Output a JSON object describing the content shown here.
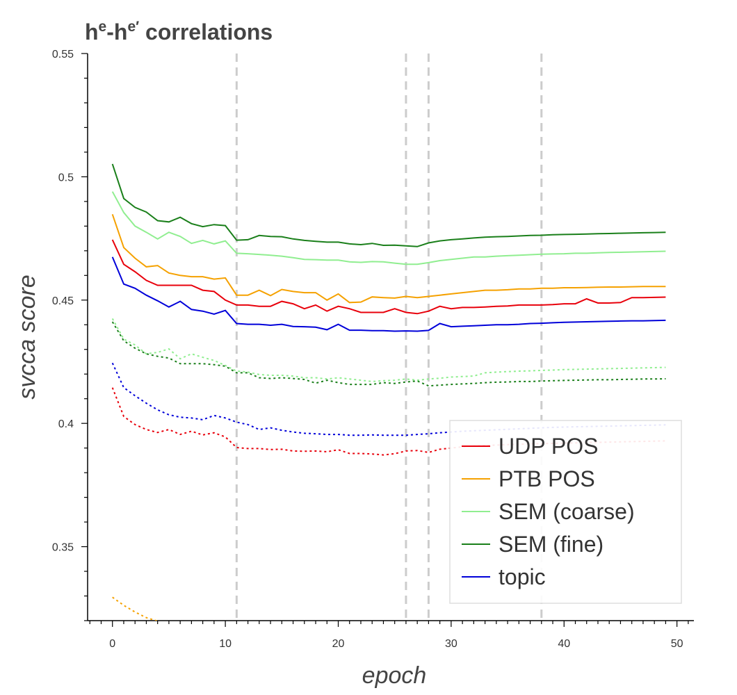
{
  "chart_data": {
    "type": "line",
    "title": {
      "base": "h",
      "sup": "e",
      "dash": "-h",
      "sup2": "e′",
      "rest": " correlations"
    },
    "xlabel": "epoch",
    "ylabel": "svcca score",
    "xlim": [
      -2.2,
      51.5
    ],
    "ylim": [
      0.32,
      0.55
    ],
    "x_ticks": [
      0,
      10,
      20,
      30,
      40,
      50
    ],
    "y_ticks": [
      0.35,
      0.4,
      0.45,
      0.5,
      0.55
    ],
    "y_tick_labels": [
      "0.35",
      "0.4",
      "0.45",
      "0.5",
      "0.55"
    ],
    "grid": false,
    "vlines": [
      11,
      26,
      28,
      38
    ],
    "legend_position": "lower-right",
    "series": [
      {
        "name": "UDP POS",
        "color": "#e8000b",
        "style": "solid",
        "x": [
          0,
          1,
          2,
          3,
          4,
          5,
          6,
          7,
          8,
          9,
          10,
          11,
          12,
          13,
          14,
          15,
          16,
          17,
          18,
          19,
          20,
          21,
          22,
          23,
          24,
          25,
          26,
          27,
          28,
          29,
          30,
          31,
          32,
          33,
          34,
          35,
          36,
          37,
          38,
          39,
          40,
          41,
          42,
          43,
          44,
          45,
          46,
          47,
          48,
          49
        ],
        "y": [
          0.4745,
          0.4645,
          0.4615,
          0.458,
          0.456,
          0.456,
          0.456,
          0.456,
          0.454,
          0.4535,
          0.45,
          0.448,
          0.448,
          0.4475,
          0.4475,
          0.4495,
          0.4485,
          0.4465,
          0.448,
          0.4455,
          0.4475,
          0.4465,
          0.445,
          0.445,
          0.445,
          0.4465,
          0.445,
          0.4445,
          0.4455,
          0.4475,
          0.4465,
          0.447,
          0.447,
          0.4472,
          0.4475,
          0.4476,
          0.448,
          0.448,
          0.448,
          0.4482,
          0.4485,
          0.4485,
          0.4505,
          0.4488,
          0.4488,
          0.449,
          0.451,
          0.451,
          0.4511,
          0.4512
        ]
      },
      {
        "name": "PTB POS",
        "color": "#f5a100",
        "style": "solid",
        "x": [
          0,
          1,
          2,
          3,
          4,
          5,
          6,
          7,
          8,
          9,
          10,
          11,
          12,
          13,
          14,
          15,
          16,
          17,
          18,
          19,
          20,
          21,
          22,
          23,
          24,
          25,
          26,
          27,
          28,
          29,
          30,
          31,
          32,
          33,
          34,
          35,
          36,
          37,
          38,
          39,
          40,
          41,
          42,
          43,
          44,
          45,
          46,
          47,
          48,
          49
        ],
        "y": [
          0.4848,
          0.4713,
          0.467,
          0.4635,
          0.464,
          0.461,
          0.46,
          0.4595,
          0.4595,
          0.4585,
          0.459,
          0.452,
          0.452,
          0.454,
          0.4518,
          0.4543,
          0.4535,
          0.453,
          0.453,
          0.45,
          0.4525,
          0.449,
          0.4492,
          0.4513,
          0.451,
          0.4508,
          0.4515,
          0.451,
          0.4515,
          0.452,
          0.4525,
          0.453,
          0.4535,
          0.454,
          0.454,
          0.4542,
          0.4545,
          0.4545,
          0.4548,
          0.4548,
          0.455,
          0.455,
          0.4551,
          0.4552,
          0.4553,
          0.4553,
          0.4554,
          0.4555,
          0.4555,
          0.4555
        ]
      },
      {
        "name": "SEM (coarse)",
        "color": "#90ee90",
        "style": "solid",
        "x": [
          0,
          1,
          2,
          3,
          4,
          5,
          6,
          7,
          8,
          9,
          10,
          11,
          12,
          13,
          14,
          15,
          16,
          17,
          18,
          19,
          20,
          21,
          22,
          23,
          24,
          25,
          26,
          27,
          28,
          29,
          30,
          31,
          32,
          33,
          34,
          35,
          36,
          37,
          38,
          39,
          40,
          41,
          42,
          43,
          44,
          45,
          46,
          47,
          48,
          49
        ],
        "y": [
          0.494,
          0.4855,
          0.48,
          0.4775,
          0.4748,
          0.4775,
          0.4758,
          0.473,
          0.4742,
          0.4728,
          0.474,
          0.469,
          0.4688,
          0.4685,
          0.4682,
          0.4678,
          0.4672,
          0.4665,
          0.4664,
          0.4662,
          0.4662,
          0.4655,
          0.4653,
          0.4656,
          0.4655,
          0.465,
          0.4645,
          0.4645,
          0.4652,
          0.466,
          0.4665,
          0.467,
          0.4675,
          0.4675,
          0.4678,
          0.468,
          0.4682,
          0.4684,
          0.4686,
          0.4687,
          0.4688,
          0.469,
          0.469,
          0.4692,
          0.4693,
          0.4694,
          0.4695,
          0.4696,
          0.4697,
          0.4698
        ]
      },
      {
        "name": "SEM (fine)",
        "color": "#1a7f1a",
        "style": "solid",
        "x": [
          0,
          1,
          2,
          3,
          4,
          5,
          6,
          7,
          8,
          9,
          10,
          11,
          12,
          13,
          14,
          15,
          16,
          17,
          18,
          19,
          20,
          21,
          22,
          23,
          24,
          25,
          26,
          27,
          28,
          29,
          30,
          31,
          32,
          33,
          34,
          35,
          36,
          37,
          38,
          39,
          40,
          41,
          42,
          43,
          44,
          45,
          46,
          47,
          48,
          49
        ],
        "y": [
          0.5052,
          0.4912,
          0.4876,
          0.4857,
          0.4822,
          0.4817,
          0.4836,
          0.481,
          0.4798,
          0.4806,
          0.4802,
          0.4743,
          0.4745,
          0.4762,
          0.4758,
          0.4757,
          0.4748,
          0.4742,
          0.4738,
          0.4735,
          0.4735,
          0.4728,
          0.4725,
          0.473,
          0.4722,
          0.4723,
          0.472,
          0.4717,
          0.4732,
          0.474,
          0.4745,
          0.4748,
          0.4752,
          0.4755,
          0.4757,
          0.4758,
          0.476,
          0.4762,
          0.4763,
          0.4765,
          0.4766,
          0.4767,
          0.4768,
          0.4769,
          0.477,
          0.4771,
          0.4772,
          0.4773,
          0.4774,
          0.4775
        ]
      },
      {
        "name": "topic",
        "color": "#0000d9",
        "style": "solid",
        "x": [
          0,
          1,
          2,
          3,
          4,
          5,
          6,
          7,
          8,
          9,
          10,
          11,
          12,
          13,
          14,
          15,
          16,
          17,
          18,
          19,
          20,
          21,
          22,
          23,
          24,
          25,
          26,
          27,
          28,
          29,
          30,
          31,
          32,
          33,
          34,
          35,
          36,
          37,
          38,
          39,
          40,
          41,
          42,
          43,
          44,
          45,
          46,
          47,
          48,
          49
        ],
        "y": [
          0.4675,
          0.4565,
          0.4548,
          0.452,
          0.4497,
          0.4472,
          0.4495,
          0.4462,
          0.4455,
          0.4443,
          0.4458,
          0.4405,
          0.4402,
          0.4402,
          0.4398,
          0.4402,
          0.4393,
          0.4392,
          0.439,
          0.438,
          0.4402,
          0.4378,
          0.4378,
          0.4376,
          0.4376,
          0.4374,
          0.4375,
          0.4374,
          0.4377,
          0.4405,
          0.4392,
          0.4394,
          0.4396,
          0.4398,
          0.44,
          0.44,
          0.4402,
          0.4405,
          0.4406,
          0.4408,
          0.441,
          0.4411,
          0.4412,
          0.4413,
          0.4414,
          0.4415,
          0.4416,
          0.4416,
          0.4417,
          0.4418
        ]
      },
      {
        "name": "",
        "color": "#e8000b",
        "style": "dotted",
        "x": [
          0,
          1,
          2,
          3,
          4,
          5,
          6,
          7,
          8,
          9,
          10,
          11,
          12,
          13,
          14,
          15,
          16,
          17,
          18,
          19,
          20,
          21,
          22,
          23,
          24,
          25,
          26,
          27,
          28,
          29,
          30,
          31,
          32,
          33,
          34,
          35,
          36,
          37,
          38,
          39,
          40,
          41,
          42,
          43,
          44,
          45,
          46,
          47,
          48,
          49
        ],
        "y": [
          0.4145,
          0.4028,
          0.3995,
          0.3975,
          0.3963,
          0.3975,
          0.3955,
          0.3968,
          0.3953,
          0.3962,
          0.3945,
          0.3902,
          0.3898,
          0.3898,
          0.3894,
          0.3895,
          0.3888,
          0.3887,
          0.3888,
          0.3885,
          0.3893,
          0.3878,
          0.3878,
          0.3876,
          0.3872,
          0.3877,
          0.3888,
          0.389,
          0.3882,
          0.3895,
          0.39,
          0.3905,
          0.3908,
          0.391,
          0.3912,
          0.3914,
          0.3915,
          0.3917,
          0.3918,
          0.3919,
          0.392,
          0.3921,
          0.3922,
          0.3923,
          0.3924,
          0.3925,
          0.3926,
          0.3927,
          0.3928,
          0.3929
        ]
      },
      {
        "name": "",
        "color": "#f5a100",
        "style": "dotted",
        "x": [
          0,
          1,
          2,
          3,
          4
        ],
        "y": [
          0.3295,
          0.3262,
          0.3235,
          0.3212,
          0.3198
        ]
      },
      {
        "name": "",
        "color": "#90ee90",
        "style": "dotted",
        "x": [
          0,
          1,
          2,
          3,
          4,
          5,
          6,
          7,
          8,
          9,
          10,
          11,
          12,
          13,
          14,
          15,
          16,
          17,
          18,
          19,
          20,
          21,
          22,
          23,
          24,
          25,
          26,
          27,
          28,
          29,
          30,
          31,
          32,
          33,
          34,
          35,
          36,
          37,
          38,
          39,
          40,
          41,
          42,
          43,
          44,
          45,
          46,
          47,
          48,
          49
        ],
        "y": [
          0.4425,
          0.4342,
          0.4318,
          0.4282,
          0.4288,
          0.4302,
          0.4262,
          0.4282,
          0.4268,
          0.4255,
          0.4235,
          0.4212,
          0.4208,
          0.4198,
          0.4195,
          0.4195,
          0.4192,
          0.4185,
          0.4185,
          0.418,
          0.4185,
          0.418,
          0.4175,
          0.417,
          0.4173,
          0.4175,
          0.418,
          0.4175,
          0.418,
          0.4183,
          0.4188,
          0.419,
          0.4192,
          0.4205,
          0.4208,
          0.421,
          0.4212,
          0.4213,
          0.4215,
          0.4216,
          0.4218,
          0.4219,
          0.422,
          0.4221,
          0.4222,
          0.4223,
          0.4224,
          0.4225,
          0.4226,
          0.4227
        ]
      },
      {
        "name": "",
        "color": "#1a7f1a",
        "style": "dotted",
        "x": [
          0,
          1,
          2,
          3,
          4,
          5,
          6,
          7,
          8,
          9,
          10,
          11,
          12,
          13,
          14,
          15,
          16,
          17,
          18,
          19,
          20,
          21,
          22,
          23,
          24,
          25,
          26,
          27,
          28,
          29,
          30,
          31,
          32,
          33,
          34,
          35,
          36,
          37,
          38,
          39,
          40,
          41,
          42,
          43,
          44,
          45,
          46,
          47,
          48,
          49
        ],
        "y": [
          0.4412,
          0.4335,
          0.4305,
          0.4282,
          0.4272,
          0.4265,
          0.4242,
          0.4242,
          0.4242,
          0.4238,
          0.4232,
          0.4205,
          0.4205,
          0.4185,
          0.4182,
          0.4185,
          0.4182,
          0.4178,
          0.4163,
          0.4175,
          0.4165,
          0.4158,
          0.4158,
          0.4158,
          0.4165,
          0.4162,
          0.4168,
          0.4172,
          0.4152,
          0.4155,
          0.4158,
          0.416,
          0.4162,
          0.4165,
          0.4167,
          0.4168,
          0.417,
          0.417,
          0.4172,
          0.4173,
          0.4174,
          0.4175,
          0.4176,
          0.4177,
          0.4177,
          0.4178,
          0.4179,
          0.418,
          0.418,
          0.4181
        ]
      },
      {
        "name": "",
        "color": "#0000d9",
        "style": "dotted",
        "x": [
          0,
          1,
          2,
          3,
          4,
          5,
          6,
          7,
          8,
          9,
          10,
          11,
          12,
          13,
          14,
          15,
          16,
          17,
          18,
          19,
          20,
          21,
          22,
          23,
          24,
          25,
          26,
          27,
          28,
          29,
          30,
          31,
          32,
          33,
          34,
          35,
          36,
          37,
          38,
          39,
          40,
          41,
          42,
          43,
          44,
          45,
          46,
          47,
          48,
          49
        ],
        "y": [
          0.4245,
          0.4145,
          0.4112,
          0.4082,
          0.4055,
          0.4035,
          0.4025,
          0.4022,
          0.4015,
          0.4032,
          0.4022,
          0.4005,
          0.3995,
          0.3975,
          0.3982,
          0.3972,
          0.3965,
          0.396,
          0.3958,
          0.3955,
          0.3955,
          0.3952,
          0.3952,
          0.3953,
          0.3952,
          0.3952,
          0.3952,
          0.3955,
          0.3958,
          0.3962,
          0.3965,
          0.3968,
          0.397,
          0.3972,
          0.3974,
          0.3976,
          0.3978,
          0.398,
          0.3982,
          0.3984,
          0.3985,
          0.3986,
          0.3987,
          0.3988,
          0.3989,
          0.399,
          0.3991,
          0.3992,
          0.3993,
          0.3994
        ]
      }
    ]
  }
}
